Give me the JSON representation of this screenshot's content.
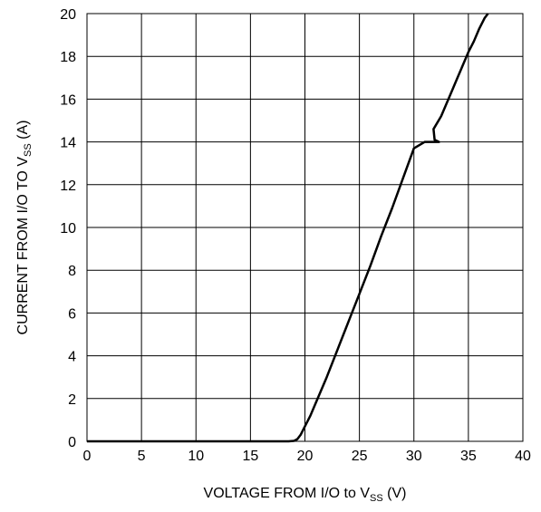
{
  "chart_data": {
    "type": "line",
    "title": "",
    "xlabel": {
      "main": "VOLTAGE FROM I/O to V",
      "sub": "SS",
      "suffix": " (V)"
    },
    "ylabel": {
      "main": "CURRENT FROM  I/O TO V",
      "sub": "SS",
      "suffix": " (A)"
    },
    "xlim": [
      0,
      40
    ],
    "ylim": [
      0,
      20
    ],
    "x_ticks": [
      "0",
      "5",
      "10",
      "15",
      "20",
      "25",
      "30",
      "35",
      "40"
    ],
    "y_ticks": [
      "0",
      "2",
      "4",
      "6",
      "8",
      "10",
      "12",
      "14",
      "16",
      "18",
      "20"
    ],
    "grid": true,
    "legend": "none",
    "colors": {
      "line": "#000000",
      "grid": "#000000",
      "background": "#ffffff"
    },
    "series": [
      {
        "x": [
          0,
          5,
          10,
          15,
          18.5,
          19.0,
          19.3,
          19.6,
          20.0,
          20.5,
          21.0,
          22.0,
          23.0,
          24.0,
          25.0,
          26.0,
          27.0,
          28.0,
          29.0,
          30.0,
          31.0,
          32.0,
          32.3,
          31.9,
          31.8,
          32.5,
          33.0,
          33.5,
          34.0,
          34.5,
          35.0,
          35.5,
          36.0,
          36.5,
          36.8
        ],
        "y": [
          0,
          0,
          0,
          0,
          0,
          0.02,
          0.1,
          0.3,
          0.7,
          1.2,
          1.8,
          3.0,
          4.3,
          5.6,
          6.9,
          8.2,
          9.6,
          10.9,
          12.3,
          13.7,
          14.0,
          14.0,
          14.0,
          14.1,
          14.6,
          15.2,
          15.8,
          16.4,
          17.0,
          17.6,
          18.2,
          18.7,
          19.3,
          19.8,
          20.0
        ]
      }
    ]
  }
}
